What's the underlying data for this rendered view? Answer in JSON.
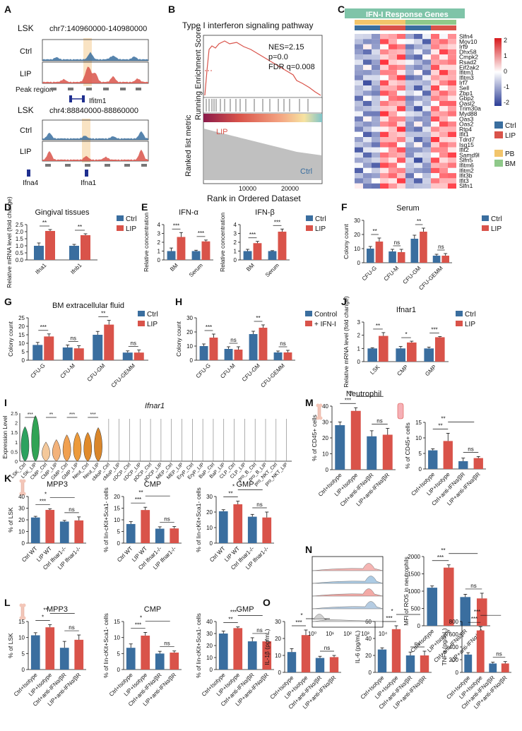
{
  "colors": {
    "ctrl": "#3a6e9f",
    "lip": "#d9534a",
    "pb": "#f2c56b",
    "bm": "#8fc98a",
    "tan": "#f3c28c",
    "peak": "#f7dcb4"
  },
  "panels": {
    "A": "A",
    "B": "B",
    "C": "C",
    "D": "D",
    "E": "E",
    "F": "F",
    "G": "G",
    "H": "H",
    "I": "I",
    "J": "J",
    "K": "K",
    "L": "L",
    "M": "M",
    "N": "N",
    "O": "O"
  },
  "panelA": {
    "lsk1": "LSK",
    "coord1": "chr7:140960000-140980000",
    "lsk2": "LSK",
    "coord2": "chr4:88840000-88860000",
    "ctrl": "Ctrl",
    "lip": "LIP",
    "peak_region": "Peak region",
    "gene1": "Ifitm1",
    "gene2a": "Ifna4",
    "gene2b": "Ifna1"
  },
  "panelB": {
    "title": "Type I interferon signaling pathway",
    "ylabel_top": "Running Enrichment Score",
    "ylabel_bottom": "Ranked list metric",
    "xlabel": "Rank in Ordered Dataset",
    "nes": "NES=2.15",
    "p": "p=0.0",
    "fdr": "FDR q=0.008",
    "lip": "LIP",
    "ctrl": "Ctrl",
    "tick1": "10000",
    "tick2": "20000"
  },
  "panelC": {
    "title": "IFN-I Response Genes",
    "genes": [
      "Slfn4",
      "Mov10",
      "Irf9",
      "Dhx58",
      "Cmpk2",
      "Rsad2",
      "Eif2ak2",
      "Ifitm1",
      "Ifitm3",
      "Irf7",
      "Sell",
      "Zbp1",
      "Gbp2",
      "Oasl2",
      "Trim30a",
      "Myd88",
      "Oas3",
      "Oas2",
      "Rtp4",
      "Ifit1",
      "Tdrd7",
      "Isg15",
      "Ifit2",
      "Samd9l",
      "Slfn5",
      "Ifitm6",
      "Ifitm2",
      "Ifit3b",
      "Ifit3",
      "Slfn1"
    ],
    "scale": [
      "2",
      "1",
      "0",
      "-1",
      "-2"
    ],
    "legend": [
      "Ctrl",
      "LIP",
      "PB",
      "BM"
    ]
  },
  "chart_data": [
    {
      "panel": "D",
      "type": "bar",
      "title": "Gingival tissues",
      "ylabel": "Relative mRNA level (fold change)",
      "categories": [
        "Ifna1",
        "Ifnb1"
      ],
      "series": [
        {
          "name": "Ctrl",
          "values": [
            1.0,
            1.0
          ],
          "errors": [
            0.2,
            0.1
          ]
        },
        {
          "name": "LIP",
          "values": [
            2.05,
            1.75
          ],
          "errors": [
            0.1,
            0.1
          ]
        }
      ],
      "ylim": [
        0,
        2.5
      ],
      "yticks": [
        "0.0",
        "0.5",
        "1.0",
        "1.5",
        "2.0",
        "2.5"
      ],
      "sig": [
        "**",
        "**"
      ],
      "legend": [
        "Ctrl",
        "LIP"
      ]
    },
    {
      "panel": "E1",
      "type": "bar",
      "title": "IFN-α",
      "ylabel": "Relative concentration",
      "categories": [
        "BM",
        "Serum"
      ],
      "series": [
        {
          "name": "Ctrl",
          "values": [
            1.0,
            1.0
          ],
          "errors": [
            0.35,
            0.1
          ]
        },
        {
          "name": "LIP",
          "values": [
            2.6,
            2.1
          ],
          "errors": [
            0.5,
            0.15
          ]
        }
      ],
      "ylim": [
        0,
        4
      ],
      "yticks": [
        "0",
        "1",
        "2",
        "3",
        "4"
      ],
      "sig": [
        "***",
        "***"
      ]
    },
    {
      "panel": "E2",
      "type": "bar",
      "title": "IFN-β",
      "ylabel": "Relative concentration",
      "categories": [
        "BM",
        "Serum"
      ],
      "series": [
        {
          "name": "Ctrl",
          "values": [
            1.0,
            1.0
          ],
          "errors": [
            0.2,
            0.05
          ]
        },
        {
          "name": "LIP",
          "values": [
            1.9,
            3.2
          ],
          "errors": [
            0.2,
            0.3
          ]
        }
      ],
      "ylim": [
        0,
        4
      ],
      "yticks": [
        "0",
        "1",
        "2",
        "3",
        "4"
      ],
      "sig": [
        "***",
        "***"
      ],
      "legend": [
        "Ctrl",
        "LIP"
      ]
    },
    {
      "panel": "F",
      "type": "bar",
      "title": "Serum",
      "ylabel": "Colony count",
      "categories": [
        "CFU-G",
        "CFU-M",
        "CFU-GM",
        "CFU-GEMM"
      ],
      "series": [
        {
          "name": "Ctrl",
          "values": [
            10,
            8,
            17,
            5
          ],
          "errors": [
            1.5,
            1.5,
            2.5,
            1
          ]
        },
        {
          "name": "LIP",
          "values": [
            15,
            7.5,
            22,
            5
          ],
          "errors": [
            2.5,
            2,
            2.5,
            1.5
          ]
        }
      ],
      "ylim": [
        0,
        30
      ],
      "yticks": [
        "0",
        "10",
        "20",
        "30"
      ],
      "sig": [
        "**",
        "ns",
        "**",
        "ns"
      ],
      "legend": [
        "Ctrl",
        "LIP"
      ]
    },
    {
      "panel": "G",
      "type": "bar",
      "title": "BM extracellular fluid",
      "ylabel": "Colony count",
      "categories": [
        "CFU-G",
        "CFU-M",
        "CFU-GM",
        "CFU-GEMM"
      ],
      "series": [
        {
          "name": "Ctrl",
          "values": [
            9,
            7.5,
            15,
            4.5
          ],
          "errors": [
            1.5,
            1.5,
            2,
            1
          ]
        },
        {
          "name": "LIP",
          "values": [
            14,
            7,
            21,
            4.5
          ],
          "errors": [
            1.5,
            1.5,
            2.5,
            1.5
          ]
        }
      ],
      "ylim": [
        0,
        25
      ],
      "yticks": [
        "0",
        "5",
        "10",
        "15",
        "20",
        "25"
      ],
      "sig": [
        "***",
        "ns",
        "**",
        "ns"
      ],
      "legend": [
        "Ctrl",
        "LIP"
      ]
    },
    {
      "panel": "H",
      "type": "bar",
      "title": "",
      "ylabel": "Colony count",
      "categories": [
        "CFU-G",
        "CFU-M",
        "CFU-GM",
        "CFU-GEMM"
      ],
      "series": [
        {
          "name": "Control",
          "values": [
            10,
            8,
            18.5,
            5.5
          ],
          "errors": [
            1.5,
            1.5,
            2,
            1
          ]
        },
        {
          "name": "+ IFN-I",
          "values": [
            16,
            7.5,
            23,
            5.5
          ],
          "errors": [
            2.5,
            2,
            2,
            1.5
          ]
        }
      ],
      "ylim": [
        0,
        30
      ],
      "yticks": [
        "0",
        "10",
        "20",
        "30"
      ],
      "sig": [
        "***",
        "ns",
        "**",
        "ns"
      ],
      "legend": [
        "Control",
        "+ IFN-I"
      ]
    },
    {
      "panel": "J",
      "type": "bar",
      "title": "Ifnar1",
      "ylabel": "Relative mRNA level (fold change)",
      "categories": [
        "LSK",
        "CMP",
        "GMP"
      ],
      "series": [
        {
          "name": "Ctrl",
          "values": [
            1.0,
            1.0,
            1.0
          ],
          "errors": [
            0.05,
            0.15,
            0.1
          ]
        },
        {
          "name": "LIP",
          "values": [
            1.95,
            1.45,
            1.85
          ],
          "errors": [
            0.25,
            0.1,
            0.05
          ]
        }
      ],
      "ylim": [
        0,
        3
      ],
      "yticks": [
        "0",
        "1",
        "2",
        "3"
      ],
      "sig": [
        "**",
        "*",
        "***"
      ],
      "legend": [
        "Ctrl",
        "LIP"
      ]
    },
    {
      "panel": "K1",
      "type": "bar",
      "title": "MPP3",
      "ylabel": "% of LSK",
      "categories": [
        "Ctrl WT",
        "LIP WT",
        "Ctrl Ifnar1-/-",
        "LIP Ifnar1-/-"
      ],
      "values": [
        22,
        28.5,
        18.5,
        19.5
      ],
      "errors": [
        1,
        1,
        1,
        3
      ],
      "ylim": [
        0,
        40
      ],
      "yticks": [
        "0",
        "10",
        "20",
        "30",
        "40"
      ],
      "sig": [
        "***",
        "*",
        "ns"
      ]
    },
    {
      "panel": "K2",
      "type": "bar",
      "title": "CMP",
      "ylabel": "% of lin-cKit+Sca1- cells",
      "categories": [
        "Ctrl WT",
        "LIP WT",
        "Ctrl Ifnar1-/-",
        "LIP Ifnar1-/-"
      ],
      "values": [
        8.2,
        14.2,
        6.2,
        6.3
      ],
      "errors": [
        1,
        1.2,
        0.8,
        0.8
      ],
      "ylim": [
        0,
        20
      ],
      "yticks": [
        "0",
        "5",
        "10",
        "15",
        "20"
      ],
      "sig": [
        "***",
        "**",
        "ns"
      ]
    },
    {
      "panel": "K3",
      "type": "bar",
      "title": "GMP",
      "ylabel": "% of lin-cKit+Sca1- cells",
      "categories": [
        "Ctrl WT",
        "LIP WT",
        "Ctrl Ifnar1-/-",
        "LIP Ifnar1-/-"
      ],
      "values": [
        20.5,
        25,
        17,
        16.5
      ],
      "errors": [
        1,
        2,
        1.5,
        3.5
      ],
      "ylim": [
        0,
        30
      ],
      "yticks": [
        "0",
        "10",
        "20",
        "30"
      ],
      "sig": [
        "**",
        "*",
        "ns"
      ]
    },
    {
      "panel": "L1",
      "type": "bar",
      "title": "MPP3",
      "ylabel": "% of LSK",
      "categories": [
        "Ctrl+Isotype",
        "LIP+Isotype",
        "Ctrl+anti-IFNα/βR",
        "LIP+anti-IFNα/βR"
      ],
      "values": [
        10.7,
        13.2,
        6.8,
        9.3
      ],
      "errors": [
        0.8,
        0.8,
        2,
        1.5
      ],
      "ylim": [
        0,
        15
      ],
      "yticks": [
        "0",
        "5",
        "10",
        "15"
      ],
      "sig": [
        "*",
        "**",
        "ns"
      ]
    },
    {
      "panel": "L2",
      "type": "bar",
      "title": "CMP",
      "ylabel": "% of lin-cKit+Sca1- cells",
      "categories": [
        "Ctrl+Isotype",
        "LIP+Isotype",
        "Ctrl+anti-IFNα/βR",
        "LIP+anti-IFNα/βR"
      ],
      "values": [
        6.8,
        10.6,
        5,
        5.3
      ],
      "errors": [
        1.2,
        1,
        0.7,
        0.5
      ],
      "ylim": [
        0,
        15
      ],
      "yticks": [
        "0",
        "5",
        "10",
        "15"
      ],
      "sig": [
        "***",
        "*",
        "ns"
      ]
    },
    {
      "panel": "L3",
      "type": "bar",
      "title": "GMP",
      "ylabel": "% of lin-cKit+Sca1- cells",
      "categories": [
        "Ctrl+Isotype",
        "LIP+Isotype",
        "Ctrl+anti-IFNα/βR",
        "LIP+anti-IFNα/βR"
      ],
      "values": [
        30,
        34.5,
        23.5,
        23.5
      ],
      "errors": [
        2,
        1,
        3,
        1
      ],
      "ylim": [
        0,
        40
      ],
      "yticks": [
        "0",
        "10",
        "20",
        "30",
        "40"
      ],
      "sig": [
        "**",
        "***",
        "ns"
      ]
    },
    {
      "panel": "M1",
      "type": "bar",
      "title": "Neutrophil",
      "ylabel": "% of CD45+ cells",
      "categories": [
        "Ctrl+Isotype",
        "LIP+Isotype",
        "Ctrl+anti-IFNα/βR",
        "LIP+anti-IFNα/βR"
      ],
      "values": [
        28,
        37,
        21,
        22
      ],
      "errors": [
        2,
        2,
        3.5,
        4
      ],
      "ylim": [
        0,
        40
      ],
      "yticks": [
        "0",
        "10",
        "20",
        "30",
        "40"
      ],
      "sig": [
        "***",
        "**",
        "ns"
      ]
    },
    {
      "panel": "M2",
      "type": "bar",
      "title": "",
      "ylabel": "% of CD45+ cells",
      "categories": [
        "Ctrl+Isotype",
        "LIP+Isotype",
        "Ctrl+anti-IFNα/βR",
        "LIP+anti-IFNα/βR"
      ],
      "values": [
        6,
        9,
        2.5,
        3.5
      ],
      "errors": [
        0.5,
        2.5,
        1,
        0.5
      ],
      "ylim": [
        0,
        15
      ],
      "yticks": [
        "0",
        "5",
        "10",
        "15"
      ],
      "sig": [
        "**",
        "**",
        "ns"
      ]
    },
    {
      "panel": "N",
      "type": "bar",
      "title": "",
      "ylabel": "MFI of ROS in neutrophils",
      "categories": [
        "Ctrl+Isotype",
        "LIP+Isotype",
        "Ctrl+anti-IFNα/βR",
        "LIP+anti-IFNα/βR"
      ],
      "values": [
        1100,
        1680,
        830,
        790
      ],
      "errors": [
        50,
        80,
        80,
        150
      ],
      "ylim": [
        0,
        2000
      ],
      "yticks": [
        "0",
        "500",
        "1000",
        "1500",
        "2000"
      ],
      "sig": [
        "***",
        "**",
        "ns"
      ]
    },
    {
      "panel": "O1",
      "type": "bar",
      "title": "",
      "ylabel": "IL-1β (pg/mL)",
      "categories": [
        "Ctrl+Isotype",
        "LIP+Isotype",
        "Ctrl+anti-IFNα/βR",
        "LIP+anti-IFNα/βR"
      ],
      "values": [
        12,
        22,
        8.5,
        9
      ],
      "errors": [
        2,
        3,
        1,
        1
      ],
      "ylim": [
        0,
        30
      ],
      "yticks": [
        "0",
        "10",
        "20",
        "30"
      ],
      "sig": [
        "***",
        "*",
        "ns"
      ]
    },
    {
      "panel": "O2",
      "type": "bar",
      "title": "",
      "ylabel": "IL-6 (pg/mL)",
      "categories": [
        "Ctrl+Isotype",
        "LIP+Isotype",
        "Ctrl+anti-IFNα/βR",
        "LIP+anti-IFNα/βR"
      ],
      "values": [
        27,
        51,
        20,
        20
      ],
      "errors": [
        2,
        4,
        4,
        5
      ],
      "ylim": [
        0,
        60
      ],
      "yticks": [
        "0",
        "20",
        "40",
        "60"
      ],
      "sig": [
        "***",
        "*",
        "ns"
      ]
    },
    {
      "panel": "O3",
      "type": "bar",
      "title": "",
      "ylabel": "TNFα (pg/mL)",
      "categories": [
        "Ctrl+Isotype",
        "LIP+Isotype",
        "Ctrl+anti-IFNα/βR",
        "LIP+anti-IFNα/βR"
      ],
      "values": [
        280,
        660,
        140,
        140
      ],
      "errors": [
        30,
        60,
        20,
        30
      ],
      "ylim": [
        0,
        800
      ],
      "yticks": [
        "0",
        "200",
        "400",
        "600",
        "800"
      ],
      "sig": [
        "***",
        "***",
        "ns"
      ]
    }
  ],
  "panelI": {
    "title": "Ifnar1",
    "ylabel": "Expression Level",
    "yticks": [
      "0",
      "0.5",
      "1",
      "1.5",
      "2",
      "2.5"
    ],
    "groups": [
      "LSK_Ctrl",
      "LSK_LIP",
      "CMP_Ctrl",
      "CMP_LIP",
      "GMP_Ctrl",
      "GMP_LIP",
      "Neut_Ctrl",
      "Neut_LIP",
      "cMoP_Ctrl",
      "cMoP_LIP",
      "cDCP_Ctrl",
      "cDCP_LIP",
      "pDCP_Ctrl",
      "pDCP_LIP",
      "MEP_Ctrl",
      "MEP_LIP",
      "EryP_Ctrl",
      "EryP_LIP",
      "BaP_Ctrl",
      "BaP_LIP",
      "CLP_Ctrl",
      "CLP_LIP",
      "pro_B_Ctrl",
      "pro_B_LIP",
      "pro_NKT_Ctrl",
      "pro_NKT_LIP"
    ],
    "sig": [
      "***",
      "**",
      "***",
      "***"
    ]
  },
  "panelN": {
    "ticks": [
      "10⁰",
      "10¹",
      "10²",
      "10³",
      "10⁴"
    ]
  }
}
